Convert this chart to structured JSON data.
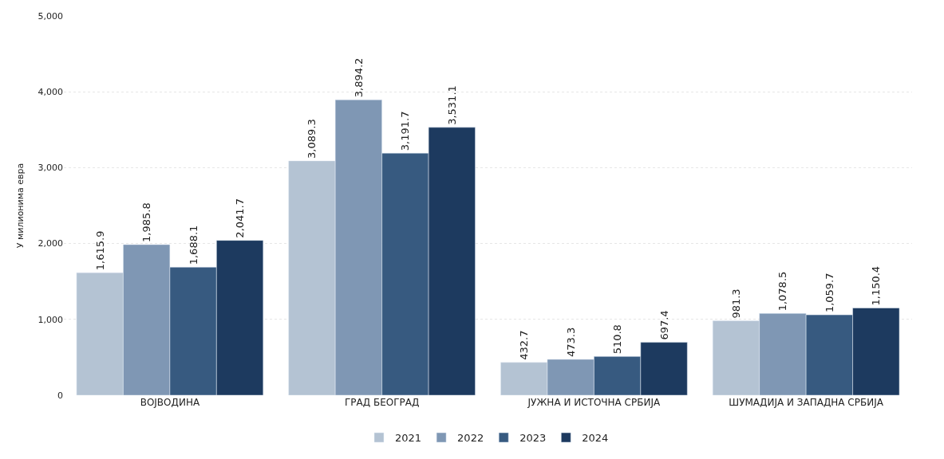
{
  "chart_data": {
    "type": "bar",
    "ylabel": "У милионима евра",
    "categories": [
      "ВОЈВОДИНА",
      "ГРАД БЕОГРАД",
      "ЈУЖНА И ИСТОЧНА СРБИЈА",
      "ШУМАДИЈА И ЗАПАДНА СРБИЈА"
    ],
    "series": [
      {
        "name": "2021",
        "color": "#b4c3d3",
        "values": [
          1615.9,
          3089.3,
          432.7,
          981.3
        ]
      },
      {
        "name": "2022",
        "color": "#7f97b4",
        "values": [
          1985.8,
          3894.2,
          473.3,
          1078.5
        ]
      },
      {
        "name": "2023",
        "color": "#375a80",
        "values": [
          1688.1,
          3191.7,
          510.8,
          1059.7
        ]
      },
      {
        "name": "2024",
        "color": "#1d3a5f",
        "values": [
          2041.7,
          3531.1,
          697.4,
          1150.4
        ]
      }
    ],
    "value_labels": [
      [
        "1,615.9",
        "3,089.3",
        "432.7",
        "981.3"
      ],
      [
        "1,985.8",
        "3,894.2",
        "473.3",
        "1,078.5"
      ],
      [
        "1,688.1",
        "3,191.7",
        "510.8",
        "1,059.7"
      ],
      [
        "2,041.7",
        "3,531.1",
        "697.4",
        "1,150.4"
      ]
    ],
    "ylim": [
      0,
      5000
    ],
    "yticks": [
      {
        "value": 0,
        "label": "0"
      },
      {
        "value": 1000,
        "label": "1,000"
      },
      {
        "value": 2000,
        "label": "2,000"
      },
      {
        "value": 3000,
        "label": "3,000"
      },
      {
        "value": 4000,
        "label": "4,000"
      },
      {
        "value": 5000,
        "label": "5,000"
      }
    ],
    "grid": "y",
    "legend": "bottom"
  }
}
